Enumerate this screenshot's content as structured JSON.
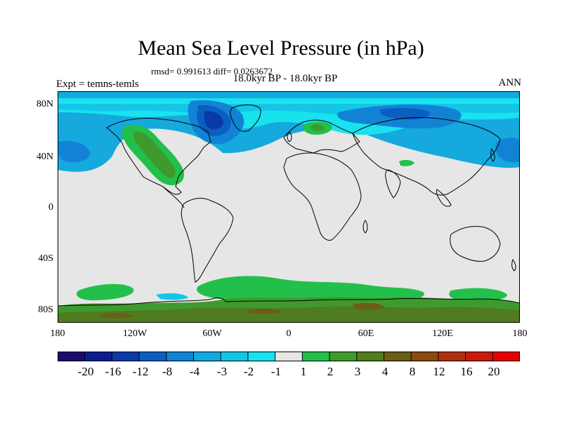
{
  "title": "Mean Sea Level Pressure (in hPa)",
  "stats": "rmsd= 0.991613  diff= 0.0263672",
  "subtitle": "18.0kyr BP - 18.0kyr BP",
  "left_label": "Expt = temns-temls",
  "right_label": "ANN",
  "lat_labels": [
    "80N",
    "40N",
    "0",
    "40S",
    "80S"
  ],
  "lon_labels": [
    "180",
    "120W",
    "60W",
    "0",
    "60E",
    "120E",
    "180"
  ],
  "colorbar": {
    "colors": [
      "#1c0a6e",
      "#0b1e8f",
      "#0a3aa8",
      "#0b5ec2",
      "#1283d4",
      "#15a9de",
      "#14c6e6",
      "#19e2ee",
      "#e6e6e6",
      "#22c04a",
      "#3f9a2e",
      "#4f7c1f",
      "#6a5e18",
      "#8a4a12",
      "#b0300e",
      "#cc1a0a",
      "#e60000"
    ],
    "labels": [
      "-20",
      "-16",
      "-12",
      "-8",
      "-4",
      "-3",
      "-2",
      "-1",
      "1",
      "2",
      "3",
      "4",
      "8",
      "12",
      "16",
      "20"
    ]
  }
}
